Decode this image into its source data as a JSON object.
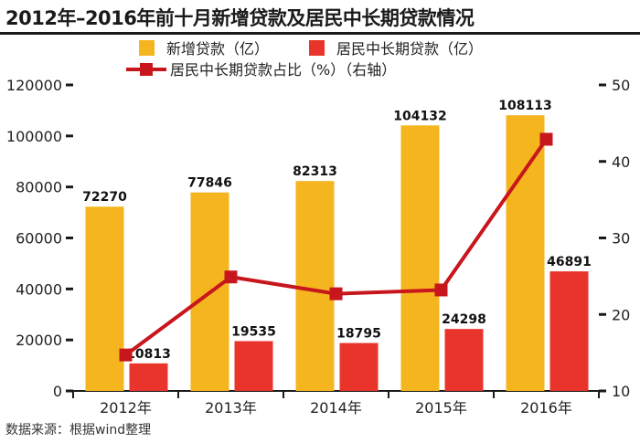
{
  "title": "2012年–2016年前十月新增贷款及居民中长期贷款情况",
  "source": "数据来源：根据wind整理",
  "colors": {
    "new_loans": "#f4b51e",
    "resident_loans": "#e8342a",
    "ratio_line": "#c8161d",
    "axis": "#1a1a1a"
  },
  "chart_data": {
    "type": "bar",
    "title": "2012年–2016年前十月新增贷款及居民中长期贷款情况",
    "categories": [
      "2012年",
      "2013年",
      "2014年",
      "2015年",
      "2016年"
    ],
    "series": [
      {
        "name": "新增贷款（亿）",
        "type": "bar",
        "axis": "left",
        "values": [
          72270,
          77846,
          82313,
          104132,
          108113
        ]
      },
      {
        "name": "居民中长期贷款（亿）",
        "type": "bar",
        "axis": "left",
        "values": [
          10813,
          19535,
          18795,
          24298,
          46891
        ]
      },
      {
        "name": "居民中长期贷款占比（%）（右轴）",
        "type": "line",
        "axis": "right",
        "values": [
          14.7,
          24.9,
          22.7,
          23.2,
          42.9
        ]
      }
    ],
    "y_left": {
      "min": 0,
      "max": 120000,
      "ticks": [
        "0",
        "20000",
        "40000",
        "60000",
        "80000",
        "100000",
        "120000"
      ]
    },
    "y_right": {
      "min": 10,
      "max": 50,
      "ticks": [
        "10",
        "20",
        "30",
        "40",
        "50"
      ]
    },
    "legend_position": "top-center"
  }
}
